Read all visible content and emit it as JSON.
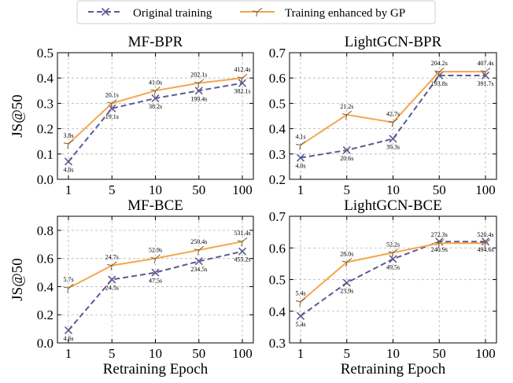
{
  "colors": {
    "original": "#5b5b92",
    "enhanced": "#f5a54e",
    "grid": "#b3b3b3",
    "axis": "#000000"
  },
  "legend": {
    "original": "Original training",
    "enhanced": "Training enhanced by GP"
  },
  "chart_data": [
    {
      "type": "line",
      "title": "MF-BPR",
      "xlabel": "",
      "ylabel": "JS@50",
      "categories": [
        "1",
        "5",
        "10",
        "50",
        "100"
      ],
      "ylim": [
        0,
        0.5
      ],
      "yticks": [
        "0.0",
        "0.1",
        "0.2",
        "0.3",
        "0.4",
        "0.5"
      ],
      "grid": true,
      "series": [
        {
          "name": "Original training",
          "marker": "x",
          "style": "dashed",
          "values": [
            0.07,
            0.28,
            0.32,
            0.35,
            0.38
          ],
          "labels": [
            "4.0s",
            "19.1s",
            "38.2s",
            "199.4s",
            "382.1s"
          ]
        },
        {
          "name": "Training enhanced by GP",
          "marker": "tri",
          "style": "solid",
          "values": [
            0.14,
            0.3,
            0.35,
            0.38,
            0.4
          ],
          "labels": [
            "3.8s",
            "20.1s",
            "41.0s",
            "202.1s",
            "412.4s"
          ]
        }
      ]
    },
    {
      "type": "line",
      "title": "LightGCN-BPR",
      "xlabel": "",
      "ylabel": "",
      "categories": [
        "1",
        "5",
        "10",
        "50",
        "100"
      ],
      "ylim": [
        0.2,
        0.7
      ],
      "yticks": [
        "0.2",
        "0.3",
        "0.4",
        "0.5",
        "0.6",
        "0.7"
      ],
      "grid": true,
      "series": [
        {
          "name": "Original training",
          "marker": "x",
          "style": "dashed",
          "values": [
            0.285,
            0.315,
            0.36,
            0.61,
            0.61
          ],
          "labels": [
            "4.0s",
            "20.6s",
            "39.3s",
            "193.8s",
            "391.7s"
          ]
        },
        {
          "name": "Training enhanced by GP",
          "marker": "tri",
          "style": "solid",
          "values": [
            0.335,
            0.455,
            0.425,
            0.625,
            0.625
          ],
          "labels": [
            "4.1s",
            "21.2s",
            "42.7s",
            "204.2s",
            "407.4s"
          ]
        }
      ]
    },
    {
      "type": "line",
      "title": "MF-BCE",
      "xlabel": "Retraining Epoch",
      "ylabel": "JS@50",
      "categories": [
        "1",
        "5",
        "10",
        "50",
        "100"
      ],
      "ylim": [
        0,
        0.9
      ],
      "yticks": [
        "0.0",
        "0.2",
        "0.4",
        "0.6",
        "0.8"
      ],
      "grid": true,
      "series": [
        {
          "name": "Original training",
          "marker": "x",
          "style": "dashed",
          "values": [
            0.09,
            0.45,
            0.5,
            0.58,
            0.65
          ],
          "labels": [
            "4.6s",
            "24.5s",
            "47.5s",
            "234.5s",
            "455.2s"
          ]
        },
        {
          "name": "Training enhanced by GP",
          "marker": "tri",
          "style": "solid",
          "values": [
            0.39,
            0.55,
            0.6,
            0.66,
            0.72
          ],
          "labels": [
            "5.7s",
            "24.7s",
            "52.9s",
            "250.4s",
            "531.4s"
          ]
        }
      ]
    },
    {
      "type": "line",
      "title": "LightGCN-BCE",
      "xlabel": "Retraining Epoch",
      "ylabel": "",
      "categories": [
        "1",
        "5",
        "10",
        "50",
        "100"
      ],
      "ylim": [
        0.3,
        0.7
      ],
      "yticks": [
        "0.3",
        "0.4",
        "0.5",
        "0.6",
        "0.7"
      ],
      "grid": true,
      "series": [
        {
          "name": "Original training",
          "marker": "x",
          "style": "dashed",
          "values": [
            0.385,
            0.49,
            0.565,
            0.62,
            0.62
          ],
          "labels": [
            "5.4s",
            "23.9s",
            "49.5s",
            "240.9s",
            "494.6s"
          ]
        },
        {
          "name": "Training enhanced by GP",
          "marker": "tri",
          "style": "solid",
          "values": [
            0.43,
            0.555,
            0.585,
            0.615,
            0.615
          ],
          "labels": [
            "5.4s",
            "28.0s",
            "52.2s",
            "272.3s",
            "520.4s"
          ]
        }
      ]
    }
  ]
}
